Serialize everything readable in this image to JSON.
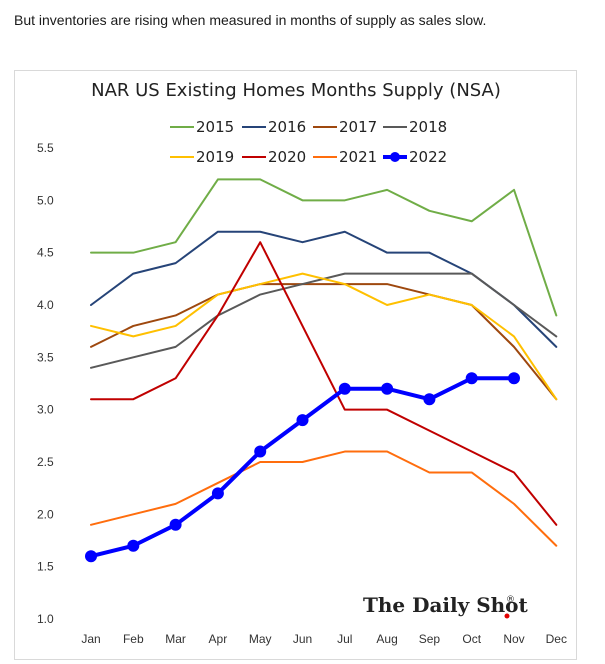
{
  "caption": "But inventories are rising when measured in months of supply as sales slow.",
  "watermark": "The Daily Shot",
  "watermark_mark": "®",
  "chart_data": {
    "type": "line",
    "title": "NAR US Existing Homes Months Supply (NSA)",
    "xlabel": "",
    "ylabel": "",
    "categories": [
      "Jan",
      "Feb",
      "Mar",
      "Apr",
      "May",
      "Jun",
      "Jul",
      "Aug",
      "Sep",
      "Oct",
      "Nov",
      "Dec"
    ],
    "ylim": [
      1.0,
      5.5
    ],
    "yticks": [
      "1.0",
      "1.5",
      "2.0",
      "2.5",
      "3.0",
      "3.5",
      "4.0",
      "4.5",
      "5.0",
      "5.5"
    ],
    "grid": false,
    "legend_position": "top",
    "series": [
      {
        "name": "2015",
        "color": "#70ad47",
        "values": [
          4.5,
          4.5,
          4.6,
          5.2,
          5.2,
          5.0,
          5.0,
          5.1,
          4.9,
          4.8,
          5.1,
          3.9
        ]
      },
      {
        "name": "2016",
        "color": "#264478",
        "values": [
          4.0,
          4.3,
          4.4,
          4.7,
          4.7,
          4.6,
          4.7,
          4.5,
          4.5,
          4.3,
          4.0,
          3.6
        ]
      },
      {
        "name": "2017",
        "color": "#9e480e",
        "values": [
          3.6,
          3.8,
          3.9,
          4.1,
          4.2,
          4.2,
          4.2,
          4.2,
          4.1,
          4.0,
          3.6,
          3.1
        ]
      },
      {
        "name": "2018",
        "color": "#595959",
        "values": [
          3.4,
          3.5,
          3.6,
          3.9,
          4.1,
          4.2,
          4.3,
          4.3,
          4.3,
          4.3,
          4.0,
          3.7
        ]
      },
      {
        "name": "2019",
        "color": "#ffc000",
        "values": [
          3.8,
          3.7,
          3.8,
          4.1,
          4.2,
          4.3,
          4.2,
          4.0,
          4.1,
          4.0,
          3.7,
          3.1
        ]
      },
      {
        "name": "2020",
        "color": "#c00000",
        "values": [
          3.1,
          3.1,
          3.3,
          3.9,
          4.6,
          3.8,
          3.0,
          3.0,
          2.8,
          2.6,
          2.4,
          1.9
        ]
      },
      {
        "name": "2021",
        "color": "#ff6d0d",
        "values": [
          1.9,
          2.0,
          2.1,
          2.3,
          2.5,
          2.5,
          2.6,
          2.6,
          2.4,
          2.4,
          2.1,
          1.7
        ]
      },
      {
        "name": "2022",
        "color": "#0000ff",
        "bold": true,
        "markers": true,
        "values": [
          1.6,
          1.7,
          1.9,
          2.2,
          2.6,
          2.9,
          3.2,
          3.2,
          3.1,
          3.3,
          3.3,
          null
        ]
      }
    ]
  }
}
